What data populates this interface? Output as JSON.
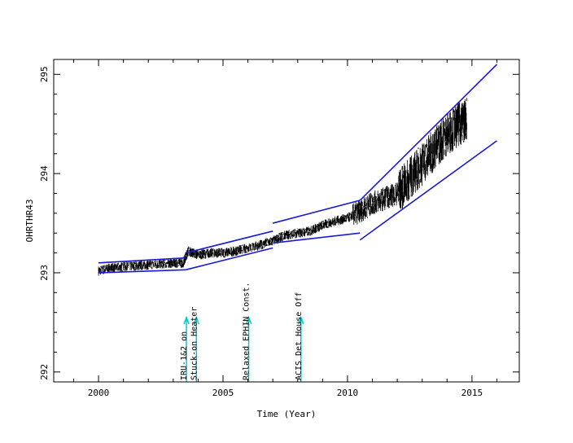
{
  "chart_data": {
    "type": "scatter",
    "xlabel": "Time (Year)",
    "ylabel": "OHRTHR43",
    "xlim": [
      1998.2,
      2016.9
    ],
    "ylim": [
      291.9,
      295.15
    ],
    "x_ticks": [
      2000,
      2005,
      2010,
      2015
    ],
    "x_tick_labels": [
      "2000",
      "2005",
      "2010",
      "2015"
    ],
    "y_ticks": [
      292,
      293,
      294,
      295
    ],
    "y_tick_labels": [
      "292",
      "293",
      "294",
      "295"
    ],
    "grid": false,
    "series": [
      {
        "color": "#000000",
        "points": [
          [
            2000.0,
            293.02
          ],
          [
            2000.5,
            293.05
          ],
          [
            2001.0,
            293.06
          ],
          [
            2001.5,
            293.07
          ],
          [
            2002.0,
            293.08
          ],
          [
            2002.5,
            293.09
          ],
          [
            2003.0,
            293.1
          ],
          [
            2003.4,
            293.1
          ],
          [
            2003.6,
            293.22
          ],
          [
            2004.0,
            293.18
          ],
          [
            2004.5,
            293.2
          ],
          [
            2005.0,
            293.2
          ],
          [
            2005.5,
            293.22
          ],
          [
            2006.0,
            293.25
          ],
          [
            2006.5,
            293.28
          ],
          [
            2007.0,
            293.32
          ],
          [
            2007.5,
            293.38
          ],
          [
            2008.0,
            293.4
          ],
          [
            2008.5,
            293.42
          ],
          [
            2009.0,
            293.48
          ],
          [
            2009.5,
            293.52
          ],
          [
            2010.0,
            293.55
          ],
          [
            2010.5,
            293.62
          ],
          [
            2011.0,
            293.7
          ],
          [
            2011.5,
            293.75
          ],
          [
            2012.0,
            293.8
          ],
          [
            2012.5,
            293.95
          ],
          [
            2013.0,
            294.1
          ],
          [
            2013.5,
            294.25
          ],
          [
            2014.0,
            294.4
          ],
          [
            2014.5,
            294.5
          ],
          [
            2014.8,
            294.55
          ]
        ]
      }
    ],
    "trend_lines": [
      {
        "x": [
          2000.0,
          2003.5
        ],
        "y": [
          293.1,
          293.15
        ]
      },
      {
        "x": [
          2000.0,
          2003.5
        ],
        "y": [
          293.0,
          293.03
        ]
      },
      {
        "x": [
          2003.5,
          2007.0
        ],
        "y": [
          293.2,
          293.42
        ]
      },
      {
        "x": [
          2003.5,
          2007.0
        ],
        "y": [
          293.03,
          293.25
        ]
      },
      {
        "x": [
          2007.0,
          2010.5
        ],
        "y": [
          293.5,
          293.73
        ]
      },
      {
        "x": [
          2007.0,
          2010.5
        ],
        "y": [
          293.3,
          293.4
        ]
      },
      {
        "x": [
          2010.5,
          2016.0
        ],
        "y": [
          293.73,
          295.1
        ]
      },
      {
        "x": [
          2010.5,
          2016.0
        ],
        "y": [
          293.33,
          294.33
        ]
      }
    ],
    "annotations": [
      {
        "x": 2003.4,
        "text": "IRU-1&2 on",
        "color": "#00cccc"
      },
      {
        "x": 2003.8,
        "text": "Stuck-on Heater",
        "color": "#00cccc"
      },
      {
        "x": 2005.9,
        "text": "Relaxed EPHIN Const.",
        "color": "#00cccc"
      },
      {
        "x": 2008.0,
        "text": "ACIS Det House Off",
        "color": "#00cccc"
      }
    ],
    "colors": {
      "data": "#000000",
      "trend": "#1a1ad6",
      "annotation_arrow": "#00cccc",
      "axes": "#000000"
    }
  }
}
